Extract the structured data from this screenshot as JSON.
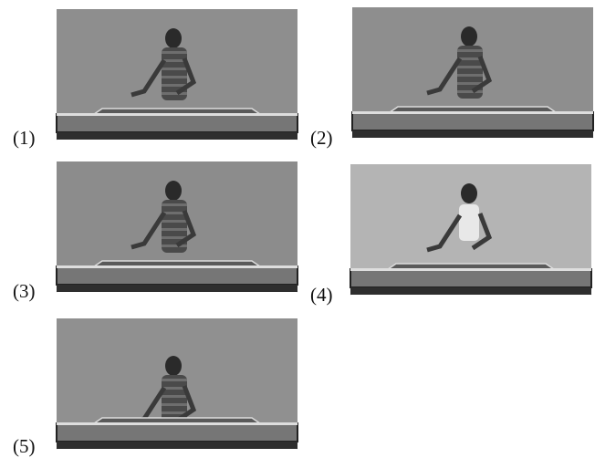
{
  "panels": [
    {
      "label": "(1)"
    },
    {
      "label": "(2)"
    },
    {
      "label": "(3)"
    },
    {
      "label": "(4)"
    },
    {
      "label": "(5)"
    }
  ]
}
